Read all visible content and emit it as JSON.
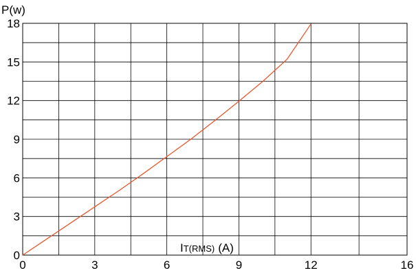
{
  "chart_data": {
    "type": "line",
    "ylabel": "P(w)",
    "xlabel": {
      "main": "I",
      "subscript": "T(RMS)",
      "unit": "(A)"
    },
    "xlim": [
      0,
      16
    ],
    "ylim": [
      0,
      18
    ],
    "x_ticks": [
      0,
      3,
      6,
      9,
      12,
      16
    ],
    "y_ticks": [
      0,
      3,
      6,
      9,
      12,
      15,
      18
    ],
    "grid": true,
    "series": [
      {
        "color": "#e8552a",
        "x": [
          0,
          1,
          2,
          3,
          4,
          5,
          6,
          7,
          8,
          9,
          10,
          11,
          12
        ],
        "y": [
          0,
          1.25,
          2.5,
          3.75,
          5.0,
          6.3,
          7.65,
          9.0,
          10.45,
          11.95,
          13.5,
          15.2,
          17.95
        ]
      }
    ]
  }
}
